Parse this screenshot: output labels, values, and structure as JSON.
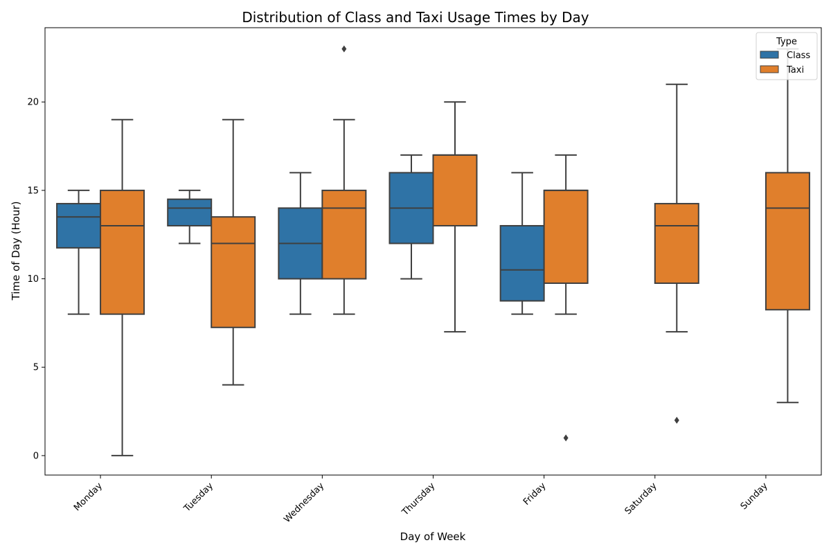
{
  "chart_data": {
    "type": "box",
    "title": "Distribution of Class and Taxi Usage Times by Day",
    "xlabel": "Day of Week",
    "ylabel": "Time of Day (Hour)",
    "ylim": [
      -1.1,
      24.2
    ],
    "yticks": [
      0,
      5,
      10,
      15,
      20
    ],
    "categories": [
      "Monday",
      "Tuesday",
      "Wednesday",
      "Thursday",
      "Friday",
      "Saturday",
      "Sunday"
    ],
    "legend": {
      "title": "Type",
      "placement": "top-right"
    },
    "grid": false,
    "series": [
      {
        "name": "Class",
        "color": "#2f73a6",
        "boxes": [
          {
            "category": "Monday",
            "whisker_low": 8,
            "q1": 11.75,
            "median": 13.5,
            "q3": 14.25,
            "whisker_high": 15,
            "outliers": []
          },
          {
            "category": "Tuesday",
            "whisker_low": 12,
            "q1": 13,
            "median": 14,
            "q3": 14.5,
            "whisker_high": 15,
            "outliers": []
          },
          {
            "category": "Wednesday",
            "whisker_low": 8,
            "q1": 10,
            "median": 12,
            "q3": 14,
            "whisker_high": 16,
            "outliers": []
          },
          {
            "category": "Thursday",
            "whisker_low": 10,
            "q1": 12,
            "median": 14,
            "q3": 16,
            "whisker_high": 17,
            "outliers": []
          },
          {
            "category": "Friday",
            "whisker_low": 8,
            "q1": 8.75,
            "median": 10.5,
            "q3": 13,
            "whisker_high": 16,
            "outliers": []
          }
        ]
      },
      {
        "name": "Taxi",
        "color": "#e07f2c",
        "boxes": [
          {
            "category": "Monday",
            "whisker_low": 0,
            "q1": 8,
            "median": 13,
            "q3": 15,
            "whisker_high": 19,
            "outliers": []
          },
          {
            "category": "Tuesday",
            "whisker_low": 4,
            "q1": 7.25,
            "median": 12,
            "q3": 13.5,
            "whisker_high": 19,
            "outliers": []
          },
          {
            "category": "Wednesday",
            "whisker_low": 8,
            "q1": 10,
            "median": 14,
            "q3": 15,
            "whisker_high": 19,
            "outliers": [
              23
            ]
          },
          {
            "category": "Thursday",
            "whisker_low": 7,
            "q1": 13,
            "median": 17,
            "q3": 17,
            "whisker_high": 20,
            "outliers": []
          },
          {
            "category": "Friday",
            "whisker_low": 8,
            "q1": 9.75,
            "median": 15,
            "q3": 15,
            "whisker_high": 17,
            "outliers": [
              1
            ]
          },
          {
            "category": "Saturday",
            "whisker_low": 7,
            "q1": 9.75,
            "median": 13,
            "q3": 14.25,
            "whisker_high": 21,
            "outliers": [
              2
            ]
          },
          {
            "category": "Sunday",
            "whisker_low": 3,
            "q1": 8.25,
            "median": 14,
            "q3": 16,
            "whisker_high": 23,
            "outliers": []
          }
        ]
      }
    ]
  }
}
